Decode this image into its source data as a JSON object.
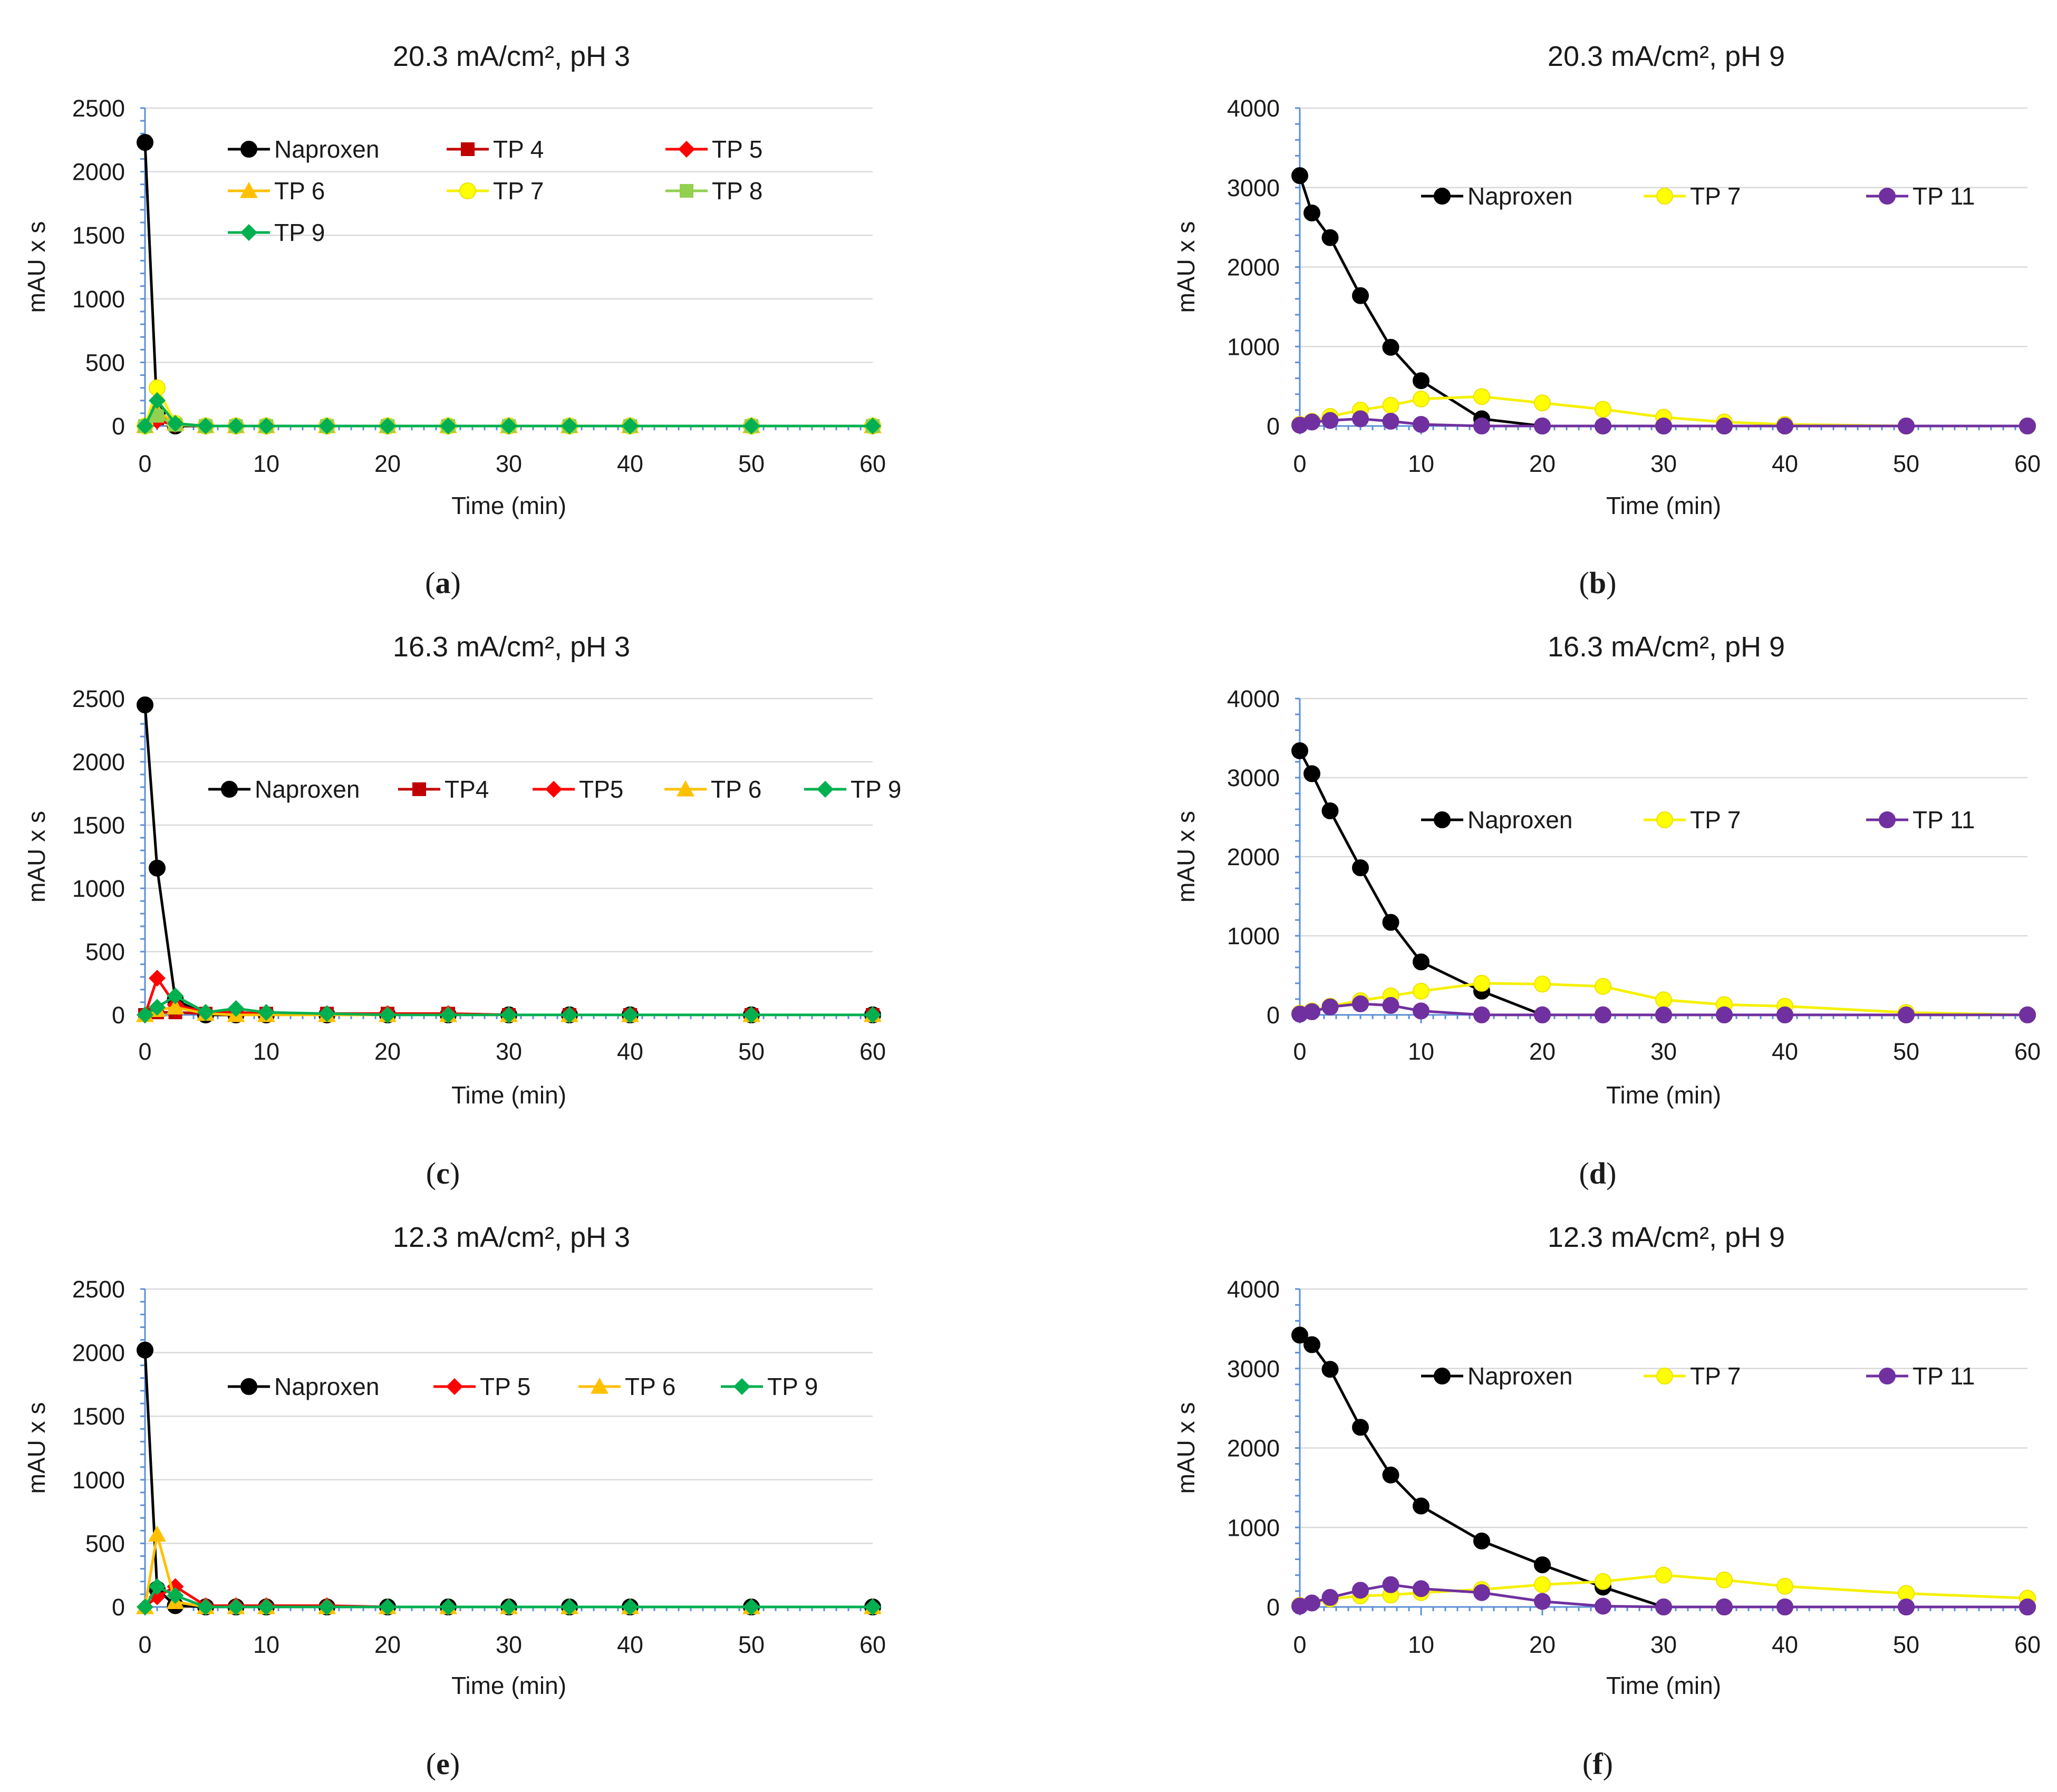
{
  "figure": {
    "panels": [
      "a",
      "b",
      "c",
      "d",
      "e",
      "f"
    ]
  },
  "colors": {
    "Naproxen": "#000000",
    "TP 4": "#c00000",
    "TP 5": "#ff0000",
    "TP 6": "#ffc000",
    "TP 7": "#ffff00",
    "TP 8": "#92d050",
    "TP 9": "#00b050",
    "TP 11": "#7030a0"
  },
  "chart_data": [
    {
      "panel": "a",
      "type": "line",
      "title": "20.3 mA/cm², pH 3",
      "xlabel": "Time (min)",
      "ylabel": "mAU x s",
      "x": [
        0,
        1,
        2.5,
        5,
        7.5,
        10,
        15,
        20,
        25,
        30,
        35,
        40,
        50,
        60
      ],
      "xlim": [
        0,
        60
      ],
      "ylim": [
        0,
        2500
      ],
      "xticks": [
        0,
        10,
        20,
        30,
        40,
        50,
        60
      ],
      "yticks": [
        0,
        500,
        1000,
        1500,
        2000,
        2500
      ],
      "legend_columns": 3,
      "series": [
        {
          "name": "Naproxen",
          "marker": "circle",
          "values": [
            2230,
            100,
            0,
            0,
            0,
            0,
            0,
            0,
            0,
            0,
            0,
            0,
            0,
            0
          ]
        },
        {
          "name": "TP 4",
          "marker": "square",
          "values": [
            0,
            60,
            10,
            0,
            0,
            0,
            0,
            0,
            0,
            0,
            0,
            0,
            0,
            0
          ]
        },
        {
          "name": "TP 5",
          "marker": "diamond",
          "values": [
            0,
            40,
            10,
            0,
            0,
            0,
            0,
            0,
            0,
            0,
            0,
            0,
            0,
            0
          ]
        },
        {
          "name": "TP 6",
          "marker": "triangle",
          "values": [
            0,
            120,
            20,
            0,
            0,
            0,
            0,
            0,
            0,
            0,
            0,
            0,
            0,
            0
          ]
        },
        {
          "name": "TP 7",
          "marker": "circle",
          "values": [
            0,
            300,
            20,
            0,
            0,
            0,
            0,
            0,
            0,
            0,
            0,
            0,
            0,
            0
          ]
        },
        {
          "name": "TP 8",
          "marker": "square",
          "values": [
            0,
            80,
            10,
            0,
            0,
            0,
            0,
            0,
            0,
            0,
            0,
            0,
            0,
            0
          ]
        },
        {
          "name": "TP 9",
          "marker": "diamond",
          "values": [
            0,
            200,
            20,
            0,
            0,
            0,
            0,
            0,
            0,
            0,
            0,
            0,
            0,
            0
          ]
        }
      ]
    },
    {
      "panel": "b",
      "type": "line",
      "title": "20.3 mA/cm², pH 9",
      "xlabel": "Time (min)",
      "ylabel": "mAU x s",
      "x": [
        0,
        1,
        2.5,
        5,
        7.5,
        10,
        15,
        20,
        25,
        30,
        35,
        40,
        50,
        60
      ],
      "xlim": [
        0,
        60
      ],
      "ylim": [
        0,
        4000
      ],
      "xticks": [
        0,
        10,
        20,
        30,
        40,
        50,
        60
      ],
      "yticks": [
        0,
        1000,
        2000,
        3000,
        4000
      ],
      "legend_columns": 3,
      "series": [
        {
          "name": "Naproxen",
          "marker": "circle",
          "values": [
            3150,
            2680,
            2370,
            1640,
            990,
            570,
            90,
            0,
            0,
            0,
            0,
            0,
            0,
            0
          ]
        },
        {
          "name": "TP 7",
          "marker": "circle",
          "values": [
            20,
            60,
            120,
            200,
            260,
            340,
            370,
            290,
            210,
            110,
            50,
            20,
            0,
            0
          ]
        },
        {
          "name": "TP 11",
          "marker": "circle",
          "values": [
            10,
            50,
            70,
            90,
            60,
            20,
            0,
            0,
            0,
            0,
            0,
            0,
            0,
            0
          ]
        }
      ]
    },
    {
      "panel": "c",
      "type": "line",
      "title": "16.3 mA/cm², pH 3",
      "xlabel": "Time (min)",
      "ylabel": "mAU x s",
      "x": [
        0,
        1,
        2.5,
        5,
        7.5,
        10,
        15,
        20,
        25,
        30,
        35,
        40,
        50,
        60
      ],
      "xlim": [
        0,
        60
      ],
      "ylim": [
        0,
        2500
      ],
      "xticks": [
        0,
        10,
        20,
        30,
        40,
        50,
        60
      ],
      "yticks": [
        0,
        500,
        1000,
        1500,
        2000,
        2500
      ],
      "legend_columns": 5,
      "series": [
        {
          "name": "Naproxen",
          "marker": "circle",
          "values": [
            2450,
            1160,
            120,
            0,
            0,
            0,
            0,
            0,
            0,
            0,
            0,
            0,
            0,
            0
          ]
        },
        {
          "name": "TP4",
          "marker": "square",
          "values": [
            0,
            20,
            20,
            10,
            10,
            10,
            10,
            10,
            10,
            0,
            0,
            0,
            0,
            0
          ]
        },
        {
          "name": "TP5",
          "marker": "diamond",
          "values": [
            0,
            290,
            80,
            20,
            20,
            10,
            10,
            10,
            10,
            0,
            0,
            0,
            0,
            0
          ]
        },
        {
          "name": "TP 6",
          "marker": "triangle",
          "values": [
            0,
            40,
            60,
            10,
            0,
            0,
            0,
            0,
            0,
            0,
            0,
            0,
            0,
            0
          ]
        },
        {
          "name": "TP 9",
          "marker": "diamond",
          "values": [
            0,
            60,
            150,
            20,
            50,
            20,
            10,
            0,
            0,
            0,
            0,
            0,
            0,
            0
          ]
        }
      ]
    },
    {
      "panel": "d",
      "type": "line",
      "title": "16.3 mA/cm², pH 9",
      "xlabel": "Time (min)",
      "ylabel": "mAU x s",
      "x": [
        0,
        1,
        2.5,
        5,
        7.5,
        10,
        15,
        20,
        25,
        30,
        35,
        40,
        50,
        60
      ],
      "xlim": [
        0,
        60
      ],
      "ylim": [
        0,
        4000
      ],
      "xticks": [
        0,
        10,
        20,
        30,
        40,
        50,
        60
      ],
      "yticks": [
        0,
        1000,
        2000,
        3000,
        4000
      ],
      "legend_columns": 3,
      "series": [
        {
          "name": "Naproxen",
          "marker": "circle",
          "values": [
            3340,
            3050,
            2580,
            1860,
            1170,
            670,
            300,
            0,
            0,
            0,
            0,
            0,
            0,
            0
          ]
        },
        {
          "name": "TP 7",
          "marker": "circle",
          "values": [
            20,
            50,
            110,
            180,
            240,
            300,
            400,
            390,
            360,
            190,
            130,
            110,
            30,
            0
          ]
        },
        {
          "name": "TP 11",
          "marker": "circle",
          "values": [
            10,
            40,
            100,
            140,
            120,
            50,
            0,
            0,
            0,
            0,
            0,
            0,
            0,
            0
          ]
        }
      ]
    },
    {
      "panel": "e",
      "type": "line",
      "title": "12.3 mA/cm², pH 3",
      "xlabel": "Time (min)",
      "ylabel": "mAU x s",
      "x": [
        0,
        1,
        2.5,
        5,
        7.5,
        10,
        15,
        20,
        25,
        30,
        35,
        40,
        50,
        60
      ],
      "xlim": [
        0,
        60
      ],
      "ylim": [
        0,
        2500
      ],
      "xticks": [
        0,
        10,
        20,
        30,
        40,
        50,
        60
      ],
      "yticks": [
        0,
        500,
        1000,
        1500,
        2000,
        2500
      ],
      "legend_columns": 4,
      "series": [
        {
          "name": "Naproxen",
          "marker": "circle",
          "values": [
            2020,
            140,
            10,
            0,
            0,
            0,
            0,
            0,
            0,
            0,
            0,
            0,
            0,
            0
          ]
        },
        {
          "name": "TP 5",
          "marker": "diamond",
          "values": [
            0,
            80,
            160,
            10,
            10,
            10,
            10,
            0,
            0,
            0,
            0,
            0,
            0,
            0
          ]
        },
        {
          "name": "TP 6",
          "marker": "triangle",
          "values": [
            0,
            570,
            40,
            0,
            0,
            0,
            0,
            0,
            0,
            0,
            0,
            0,
            0,
            0
          ]
        },
        {
          "name": "TP 9",
          "marker": "diamond",
          "values": [
            0,
            160,
            90,
            0,
            0,
            0,
            0,
            0,
            0,
            0,
            0,
            0,
            0,
            0
          ]
        }
      ]
    },
    {
      "panel": "f",
      "type": "line",
      "title": "12.3 mA/cm², pH 9",
      "xlabel": "Time (min)",
      "ylabel": "mAU x s",
      "x": [
        0,
        1,
        2.5,
        5,
        7.5,
        10,
        15,
        20,
        25,
        30,
        35,
        40,
        50,
        60
      ],
      "xlim": [
        0,
        60
      ],
      "ylim": [
        0,
        4000
      ],
      "xticks": [
        0,
        10,
        20,
        30,
        40,
        50,
        60
      ],
      "yticks": [
        0,
        1000,
        2000,
        3000,
        4000
      ],
      "legend_columns": 3,
      "series": [
        {
          "name": "Naproxen",
          "marker": "circle",
          "values": [
            3420,
            3300,
            2990,
            2260,
            1660,
            1270,
            830,
            530,
            250,
            0,
            0,
            0,
            0,
            0
          ]
        },
        {
          "name": "TP 7",
          "marker": "circle",
          "values": [
            20,
            50,
            100,
            140,
            150,
            180,
            220,
            280,
            320,
            400,
            340,
            260,
            170,
            110
          ]
        },
        {
          "name": "TP 11",
          "marker": "circle",
          "values": [
            10,
            50,
            120,
            210,
            280,
            230,
            180,
            70,
            10,
            0,
            0,
            0,
            0,
            0
          ]
        }
      ]
    }
  ]
}
